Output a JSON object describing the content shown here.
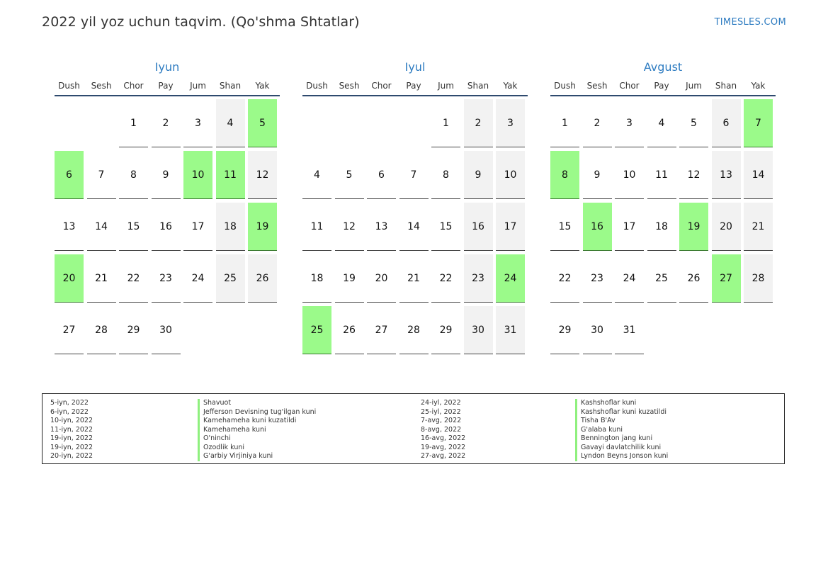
{
  "header": {
    "title": "2022 yil yoz uchun taqvim. (Qo'shma Shtatlar)",
    "brand": "TIMESLES.COM"
  },
  "weekdays": [
    "Dush",
    "Sesh",
    "Chor",
    "Pay",
    "Jum",
    "Shan",
    "Yak"
  ],
  "colors": {
    "accent": "#2e7cc1",
    "holiday": "#9bfa8a",
    "weekend": "#f2f2f2"
  },
  "months": [
    {
      "name": "Iyun",
      "start_offset": 2,
      "days": 30,
      "holidays": [
        5,
        6,
        10,
        11,
        19,
        20
      ]
    },
    {
      "name": "Iyul",
      "start_offset": 4,
      "days": 31,
      "holidays": [
        24,
        25
      ]
    },
    {
      "name": "Avgust",
      "start_offset": 0,
      "days": 31,
      "holidays": [
        7,
        8,
        16,
        19,
        27
      ]
    }
  ],
  "legend": {
    "left": [
      {
        "date": "5-iyn, 2022",
        "name": "Shavuot"
      },
      {
        "date": "6-iyn, 2022",
        "name": "Jefferson Devisning tug'ilgan kuni"
      },
      {
        "date": "10-iyn, 2022",
        "name": "Kamehameha kuni kuzatildi"
      },
      {
        "date": "11-iyn, 2022",
        "name": "Kamehameha kuni"
      },
      {
        "date": "19-iyn, 2022",
        "name": "O'ninchi"
      },
      {
        "date": "19-iyn, 2022",
        "name": "Ozodlik kuni"
      },
      {
        "date": "20-iyn, 2022",
        "name": "G'arbiy Virjiniya kuni"
      }
    ],
    "right": [
      {
        "date": "24-iyl, 2022",
        "name": "Kashshoflar kuni"
      },
      {
        "date": "25-iyl, 2022",
        "name": "Kashshoflar kuni kuzatildi"
      },
      {
        "date": "7-avg, 2022",
        "name": "Tisha B'Av"
      },
      {
        "date": "8-avg, 2022",
        "name": "G'alaba kuni"
      },
      {
        "date": "16-avg, 2022",
        "name": "Bennington jang kuni"
      },
      {
        "date": "19-avg, 2022",
        "name": "Gavayi davlatchilik kuni"
      },
      {
        "date": "27-avg, 2022",
        "name": "Lyndon Beyns Jonson kuni"
      }
    ]
  }
}
